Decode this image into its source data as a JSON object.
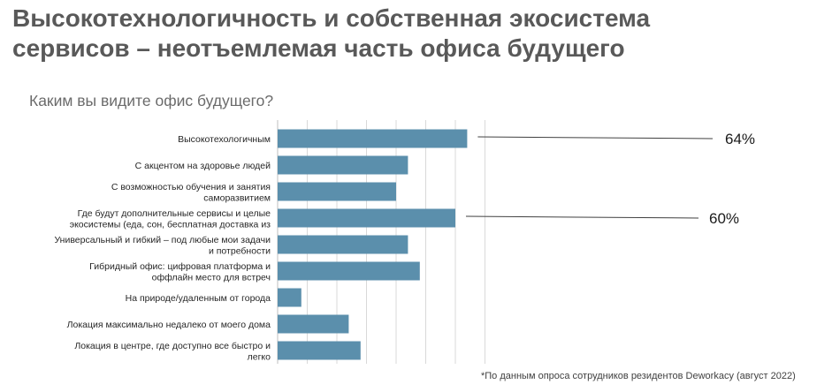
{
  "header": {
    "title_line1": "Высокотехнологичность и собственная экосистема",
    "title_line2": "сервисов – неотъемлемая часть офиса будущего",
    "subtitle": "Каким вы видите офис будущего?"
  },
  "footnote": "*По данным опроса сотрудников резидентов Deworkacy (август 2022)",
  "colors": {
    "bar": "#5b8fac",
    "grid": "#d9d9d9",
    "axis": "#bfbfbf",
    "callout": "#404040",
    "label": "#262626"
  },
  "chart_data": {
    "type": "bar",
    "orientation": "horizontal",
    "title": "Каким вы видите офис будущего?",
    "xlabel": "",
    "ylabel": "",
    "xlim": [
      0,
      70
    ],
    "grid": true,
    "categories": [
      [
        "Высокотехологичным"
      ],
      [
        "С акцентом на здоровье людей"
      ],
      [
        "С возможностью обучения и занятия",
        "саморазвитием"
      ],
      [
        "Где будут дополнительные сервисы и целые",
        "экосистемы (еда, сон, бесплатная доставка из"
      ],
      [
        "Универсальный и гибкий – под любые мои задачи",
        "и потребности"
      ],
      [
        "Гибридный офис: цифровая платформа и",
        "оффлайн место для встреч"
      ],
      [
        "На природе/удаленным от города"
      ],
      [
        "Локация максимально недалеко от моего дома"
      ],
      [
        "Локация в центре, где доступно все быстро и",
        "легко"
      ]
    ],
    "values": [
      64,
      44,
      40,
      60,
      44,
      48,
      8,
      24,
      28
    ],
    "annotations": [
      {
        "bar_index": 0,
        "text": "64%"
      },
      {
        "bar_index": 3,
        "text": "60%"
      }
    ]
  }
}
